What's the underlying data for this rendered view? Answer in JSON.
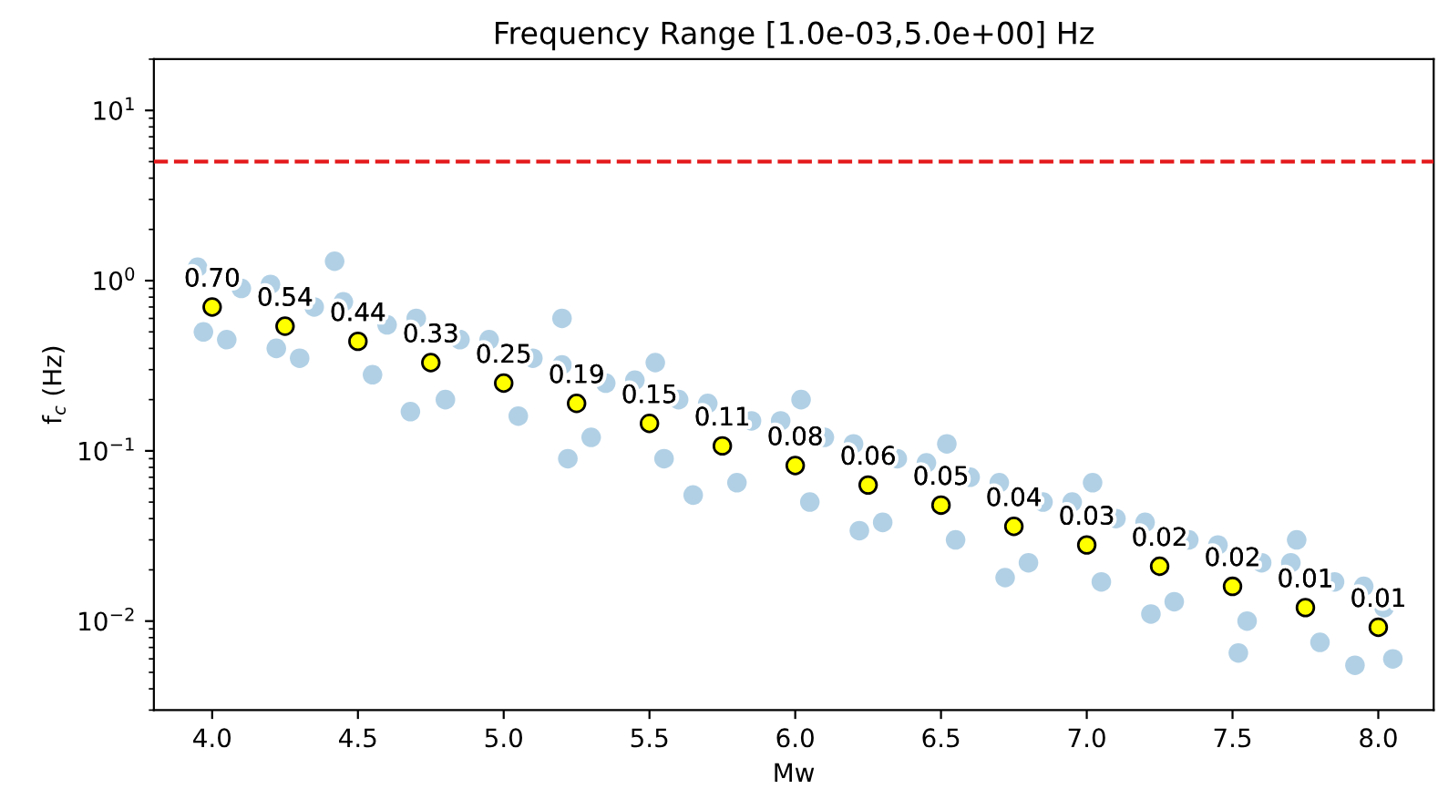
{
  "chart_data": {
    "type": "scatter",
    "title": "Frequency Range [1.0e-03,5.0e+00] Hz",
    "xlabel": "Mw",
    "ylabel": "f$_{c}$ (Hz)",
    "log": "y",
    "xlim": [
      3.8,
      8.19
    ],
    "xticks": [
      {
        "value": 4.0,
        "label": "4.0"
      },
      {
        "value": 4.5,
        "label": "4.5"
      },
      {
        "value": 5.0,
        "label": "5.0"
      },
      {
        "value": 5.5,
        "label": "5.5"
      },
      {
        "value": 6.0,
        "label": "6.0"
      },
      {
        "value": 6.5,
        "label": "6.5"
      },
      {
        "value": 7.0,
        "label": "7.0"
      },
      {
        "value": 7.5,
        "label": "7.5"
      },
      {
        "value": 8.0,
        "label": "8.0"
      }
    ],
    "ylim": [
      0.003,
      20
    ],
    "yticks": [
      {
        "value": 0.01,
        "label": "10$^{−2}$"
      },
      {
        "value": 0.1,
        "label": "10$^{−1}$"
      },
      {
        "value": 1,
        "label": "10$^{0}$"
      },
      {
        "value": 10,
        "label": "10$^{1}$"
      }
    ],
    "grid": false,
    "legend": false,
    "ref_lines": [
      {
        "axis": "y",
        "value": 5.0,
        "color": "#e41a1c",
        "line_style": "dashed"
      }
    ],
    "series": [
      {
        "color": "#1f77b4",
        "marker": "circle",
        "x": [
          3.95,
          4.05,
          4.1,
          3.97,
          4.2,
          4.3,
          4.35,
          4.22,
          4.45,
          4.55,
          4.6,
          4.42,
          4.7,
          4.8,
          4.85,
          4.68,
          4.95,
          5.05,
          5.1,
          5.2,
          5.2,
          5.3,
          5.35,
          5.22,
          5.45,
          5.55,
          5.6,
          5.52,
          5.7,
          5.8,
          5.85,
          5.65,
          5.95,
          6.05,
          6.1,
          6.02,
          6.2,
          6.3,
          6.35,
          6.22,
          6.45,
          6.55,
          6.6,
          6.52,
          6.7,
          6.8,
          6.85,
          6.72,
          6.95,
          7.05,
          7.1,
          7.02,
          7.2,
          7.3,
          7.35,
          7.22,
          7.45,
          7.55,
          7.6,
          7.52,
          7.7,
          7.8,
          7.85,
          7.72,
          7.95,
          8.05,
          8.02,
          7.92
        ],
        "values": [
          1.2,
          0.45,
          0.9,
          0.5,
          0.95,
          0.35,
          0.7,
          0.4,
          0.75,
          0.28,
          0.55,
          1.3,
          0.6,
          0.2,
          0.45,
          0.17,
          0.45,
          0.16,
          0.35,
          0.6,
          0.32,
          0.12,
          0.25,
          0.09,
          0.26,
          0.09,
          0.2,
          0.33,
          0.19,
          0.065,
          0.15,
          0.055,
          0.15,
          0.05,
          0.12,
          0.2,
          0.11,
          0.038,
          0.09,
          0.034,
          0.085,
          0.03,
          0.07,
          0.11,
          0.065,
          0.022,
          0.05,
          0.018,
          0.05,
          0.017,
          0.04,
          0.065,
          0.038,
          0.013,
          0.03,
          0.011,
          0.028,
          0.01,
          0.022,
          0.0065,
          0.022,
          0.0075,
          0.017,
          0.03,
          0.016,
          0.006,
          0.012,
          0.0055
        ]
      },
      {
        "color": "#ffff00",
        "marker": "circle",
        "x": [
          4.0,
          4.25,
          4.5,
          4.75,
          5.0,
          5.25,
          5.5,
          5.75,
          6.0,
          6.25,
          6.5,
          6.75,
          7.0,
          7.25,
          7.5,
          7.75,
          8.0
        ],
        "values": [
          0.7,
          0.54,
          0.44,
          0.33,
          0.25,
          0.19,
          0.145,
          0.107,
          0.082,
          0.063,
          0.048,
          0.036,
          0.028,
          0.021,
          0.016,
          0.012,
          0.0092
        ],
        "value_labels": [
          "0.70",
          "0.54",
          "0.44",
          "0.33",
          "0.25",
          "0.19",
          "0.15",
          "0.11",
          "0.08",
          "0.06",
          "0.05",
          "0.04",
          "0.03",
          "0.02",
          "0.02",
          "0.01",
          "0.01"
        ]
      }
    ]
  }
}
